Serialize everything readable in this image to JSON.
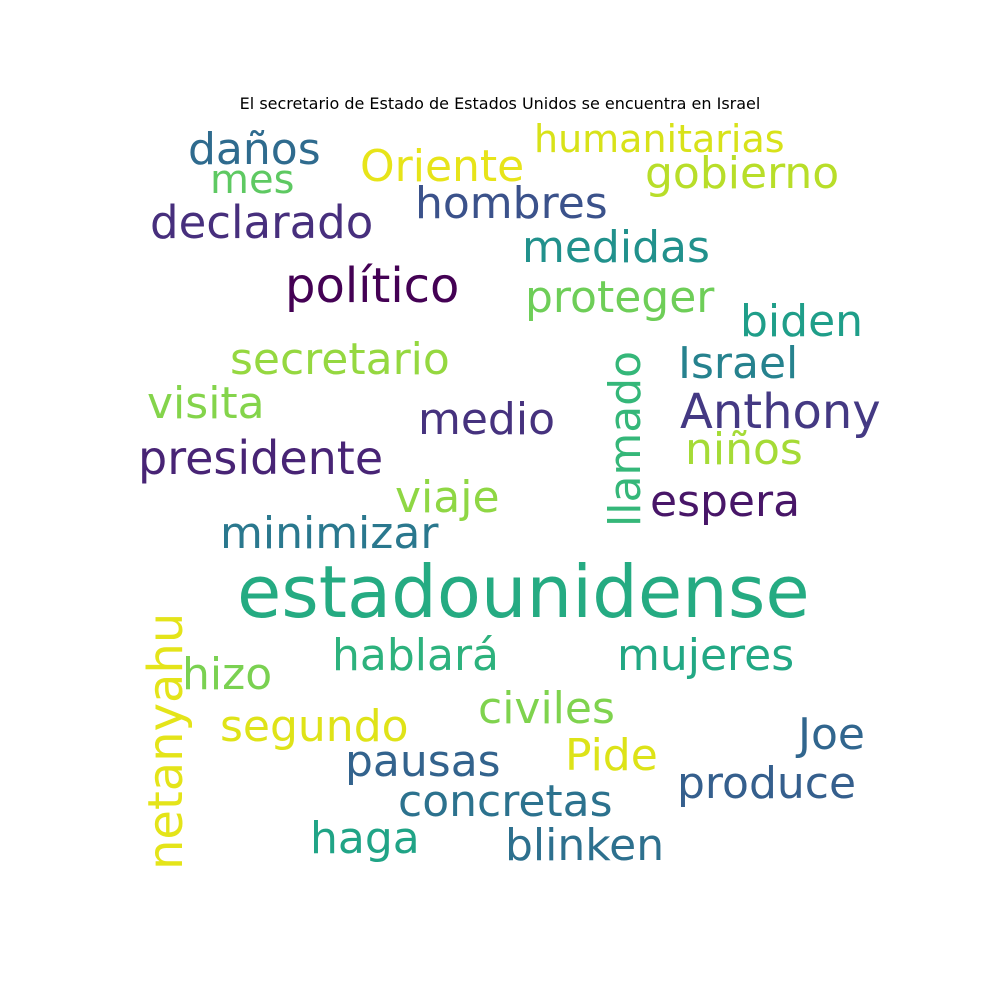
{
  "title": "El secretario de Estado de Estados Unidos se encuentra en Israel",
  "words": [
    {
      "key": "humanitarias",
      "text": "humanitarias",
      "color": "#d8e219"
    },
    {
      "key": "danos",
      "text": "daños",
      "color": "#2f6b8e"
    },
    {
      "key": "oriente",
      "text": "Oriente",
      "color": "#e7e419"
    },
    {
      "key": "gobierno",
      "text": "gobierno",
      "color": "#b8de29"
    },
    {
      "key": "mes",
      "text": "mes",
      "color": "#5ec962"
    },
    {
      "key": "hombres",
      "text": "hombres",
      "color": "#3b528b"
    },
    {
      "key": "declarado",
      "text": "declarado",
      "color": "#472f7d"
    },
    {
      "key": "medidas",
      "text": "medidas",
      "color": "#21918c"
    },
    {
      "key": "politico",
      "text": "político",
      "color": "#440154"
    },
    {
      "key": "proteger",
      "text": "proteger",
      "color": "#6ece58"
    },
    {
      "key": "biden",
      "text": "biden",
      "color": "#1f9e89"
    },
    {
      "key": "secretario",
      "text": "secretario",
      "color": "#95d840"
    },
    {
      "key": "llamado",
      "text": "llamado",
      "color": "#35b779"
    },
    {
      "key": "israel",
      "text": "Israel",
      "color": "#26828e"
    },
    {
      "key": "visita",
      "text": "visita",
      "color": "#84d44b"
    },
    {
      "key": "anthony",
      "text": "Anthony",
      "color": "#443983"
    },
    {
      "key": "medio",
      "text": "medio",
      "color": "#46327e"
    },
    {
      "key": "presidente",
      "text": "presidente",
      "color": "#482475"
    },
    {
      "key": "ninos",
      "text": "niños",
      "color": "#a5db36"
    },
    {
      "key": "viaje",
      "text": "viaje",
      "color": "#8fd744"
    },
    {
      "key": "espera",
      "text": "espera",
      "color": "#481668"
    },
    {
      "key": "minimizar",
      "text": "minimizar",
      "color": "#2a788e"
    },
    {
      "key": "estadounidense",
      "text": "estadounidense",
      "color": "#25ab82"
    },
    {
      "key": "netanyahu",
      "text": "netanyahu",
      "color": "#e4e419"
    },
    {
      "key": "hizo",
      "text": "hizo",
      "color": "#7ad151"
    },
    {
      "key": "hablara",
      "text": "hablará",
      "color": "#2db27d"
    },
    {
      "key": "mujeres",
      "text": "mujeres",
      "color": "#22a884"
    },
    {
      "key": "civiles",
      "text": "civiles",
      "color": "#7fd34e"
    },
    {
      "key": "segundo",
      "text": "segundo",
      "color": "#dfe318"
    },
    {
      "key": "joe",
      "text": "Joe",
      "color": "#31668e"
    },
    {
      "key": "pausas",
      "text": "pausas",
      "color": "#33638d"
    },
    {
      "key": "pide",
      "text": "Pide",
      "color": "#dde318"
    },
    {
      "key": "produce",
      "text": "produce",
      "color": "#355f8d"
    },
    {
      "key": "concretas",
      "text": "concretas",
      "color": "#2c728e"
    },
    {
      "key": "haga",
      "text": "haga",
      "color": "#20a486"
    },
    {
      "key": "blinken",
      "text": "blinken",
      "color": "#2d708e"
    }
  ]
}
